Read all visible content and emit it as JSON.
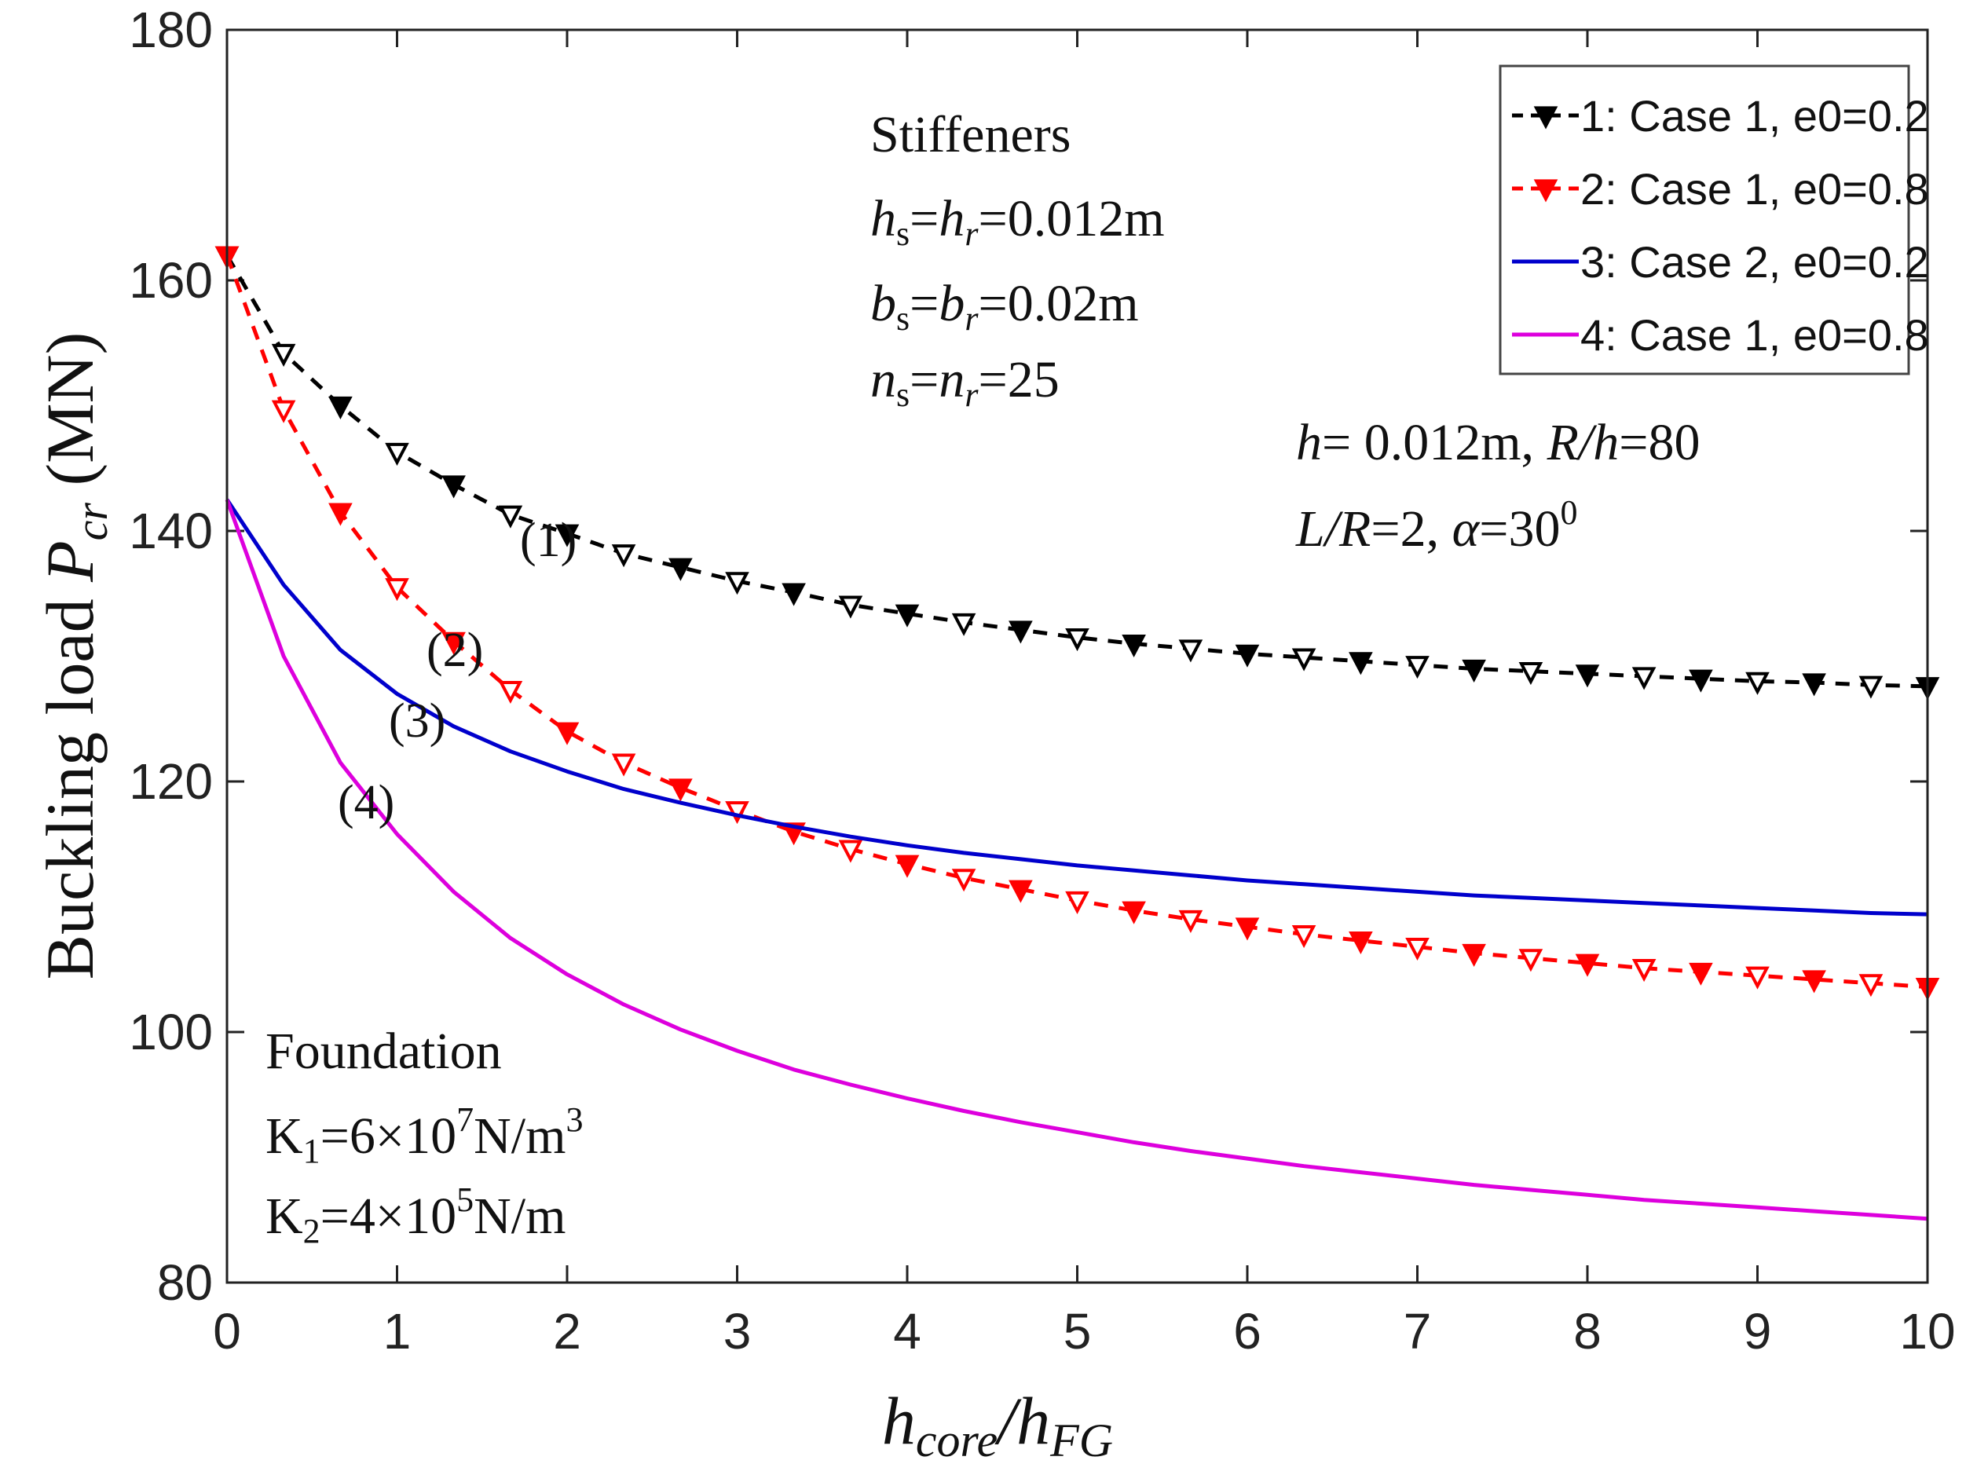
{
  "chart_data": {
    "type": "line",
    "title": "",
    "xlabel": {
      "main": "h",
      "sub1": "core",
      "slash": "/h",
      "sub2": "FG"
    },
    "ylabel": {
      "prefix": "Buckling load ",
      "var": "P",
      "sub": "cr",
      "unit": " (MN)"
    },
    "xlim": [
      0,
      10
    ],
    "ylim": [
      80,
      180
    ],
    "xticks": [
      0,
      1,
      2,
      3,
      4,
      5,
      6,
      7,
      8,
      9,
      10
    ],
    "yticks": [
      80,
      100,
      120,
      140,
      160,
      180
    ],
    "legend_position": "top-right",
    "x": [
      0,
      0.333,
      0.667,
      1,
      1.333,
      1.667,
      2,
      2.333,
      2.667,
      3,
      3.333,
      3.667,
      4,
      4.333,
      4.667,
      5,
      5.333,
      5.667,
      6,
      6.333,
      6.667,
      7,
      7.333,
      7.667,
      8,
      8.333,
      8.667,
      9,
      9.333,
      9.667,
      10
    ],
    "series": [
      {
        "name": "1: Case 1, e0=0.2",
        "color": "#000000",
        "style": "dashed-marker",
        "label": "(1)",
        "values": [
          162,
          154.2,
          150,
          146.3,
          143.7,
          141.3,
          139.8,
          138.2,
          137.1,
          136,
          135.1,
          134.1,
          133.4,
          132.7,
          132.1,
          131.5,
          131,
          130.6,
          130.2,
          129.9,
          129.6,
          129.3,
          129,
          128.8,
          128.6,
          128.4,
          128.2,
          128,
          127.9,
          127.7,
          127.6
        ]
      },
      {
        "name": "2:  Case 1, e0=0.8",
        "color": "#ff0000",
        "style": "dashed-marker",
        "label": "(2)",
        "values": [
          162,
          149.7,
          141.5,
          135.5,
          131.2,
          127.3,
          124,
          121.5,
          119.5,
          117.7,
          116,
          114.6,
          113.4,
          112.3,
          111.4,
          110.5,
          109.7,
          109,
          108.4,
          107.8,
          107.3,
          106.8,
          106.3,
          105.9,
          105.5,
          105.1,
          104.8,
          104.5,
          104.2,
          103.9,
          103.6
        ]
      },
      {
        "name": "3:  Case 2, e0=0.2",
        "color": "#0000cc",
        "style": "solid",
        "label": "(3)",
        "values": [
          142.5,
          135.7,
          130.5,
          127,
          124.4,
          122.4,
          120.8,
          119.4,
          118.3,
          117.3,
          116.4,
          115.6,
          114.9,
          114.3,
          113.8,
          113.3,
          112.9,
          112.5,
          112.1,
          111.8,
          111.5,
          111.2,
          110.9,
          110.7,
          110.5,
          110.3,
          110.1,
          109.9,
          109.7,
          109.5,
          109.4
        ]
      },
      {
        "name": "4:  Case 1, e0=0.8",
        "color": "#dd00dd",
        "style": "solid",
        "label": "(4)",
        "values": [
          142.5,
          130,
          121.5,
          115.8,
          111.2,
          107.5,
          104.6,
          102.2,
          100.2,
          98.5,
          97,
          95.8,
          94.7,
          93.7,
          92.8,
          92,
          91.2,
          90.5,
          89.9,
          89.3,
          88.8,
          88.3,
          87.8,
          87.4,
          87,
          86.6,
          86.3,
          86,
          85.7,
          85.4,
          85.1
        ]
      }
    ],
    "annotations": {
      "stiffeners": {
        "title": "Stiffeners",
        "line1": {
          "a": "h",
          "as": "s",
          "eq1": "=",
          "b": "h",
          "bs": "r",
          "val": "=0.012m"
        },
        "line2": {
          "a": "b",
          "as": "s",
          "eq1": "=",
          "b": "b",
          "bs": "r",
          "val": "=0.02m"
        },
        "line3": {
          "a": "n",
          "as": "s",
          "eq1": "=",
          "b": "n",
          "bs": "r",
          "val": "=25"
        }
      },
      "geometry": {
        "line1": {
          "v1": "h",
          "t1": "= 0.012m, ",
          "v2": "R/h",
          "t2": "=80"
        },
        "line2": {
          "v1": "L/R",
          "t1": "=2, ",
          "v2": "α",
          "t2": "=30",
          "sup": "0"
        }
      },
      "foundation": {
        "title": "Foundation",
        "k1": {
          "k": "K",
          "sub": "1",
          "t1": "=6×10",
          "exp": "7",
          "t2": "N/m",
          "unit_exp": "3"
        },
        "k2": {
          "k": "K",
          "sub": "2",
          "t1": "=4×10",
          "exp": "5",
          "t2": "N/m"
        }
      }
    }
  }
}
